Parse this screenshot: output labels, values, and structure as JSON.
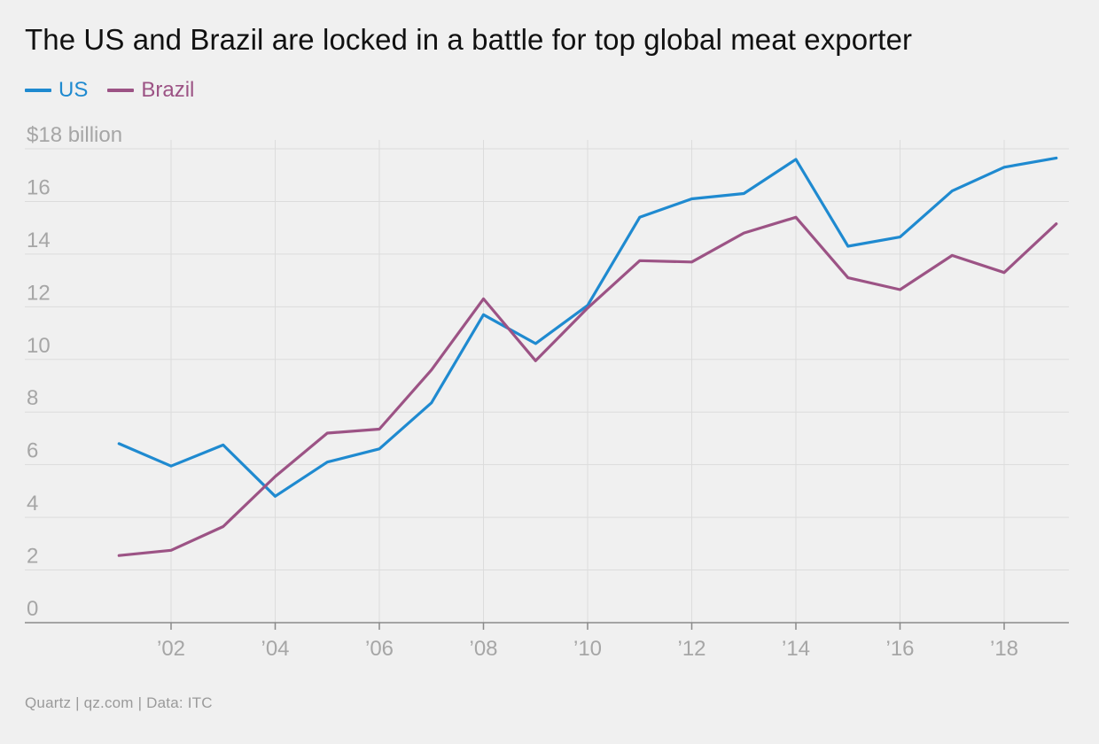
{
  "title": "The US and Brazil are locked in a battle for top global meat exporter",
  "footer": "Quartz | qz.com | Data: ITC",
  "chart_data": {
    "type": "line",
    "title": "The US and Brazil are locked in a battle for top global meat exporter",
    "ylabel": "$18 billion",
    "xlabel": "",
    "x": [
      2001,
      2002,
      2003,
      2004,
      2005,
      2006,
      2007,
      2008,
      2009,
      2010,
      2011,
      2012,
      2013,
      2014,
      2015,
      2016,
      2017,
      2018,
      2019
    ],
    "xlim": [
      2000,
      2019.3
    ],
    "ylim": [
      0,
      18
    ],
    "x_ticks": [
      2002,
      2004,
      2006,
      2008,
      2010,
      2012,
      2014,
      2016,
      2018
    ],
    "x_tick_labels": [
      "’02",
      "’04",
      "’06",
      "’08",
      "’10",
      "’12",
      "’14",
      "’16",
      "’18"
    ],
    "y_ticks": [
      0,
      2,
      4,
      6,
      8,
      10,
      12,
      14,
      16,
      18
    ],
    "y_tick_labels": [
      "0",
      "2",
      "4",
      "6",
      "8",
      "10",
      "12",
      "14",
      "16",
      "$18 billion"
    ],
    "grid": true,
    "legend_position": "top-left",
    "series": [
      {
        "name": "US",
        "color": "#1f8ad0",
        "values": [
          6.8,
          5.95,
          6.75,
          4.8,
          6.1,
          6.6,
          8.35,
          11.7,
          10.6,
          12.05,
          15.4,
          16.1,
          16.3,
          17.6,
          14.3,
          14.65,
          16.4,
          17.3,
          17.65
        ]
      },
      {
        "name": "Brazil",
        "color": "#9c5385",
        "values": [
          2.55,
          2.75,
          3.65,
          5.55,
          7.2,
          7.35,
          9.6,
          12.3,
          9.95,
          11.95,
          13.75,
          13.7,
          14.8,
          15.4,
          13.1,
          12.65,
          13.95,
          13.3,
          15.15
        ]
      }
    ]
  },
  "colors": {
    "background": "#f0f0f0",
    "grid": "#dcdcdc",
    "axis": "#8a8a8a",
    "tick_text": "#a6a6a6"
  }
}
